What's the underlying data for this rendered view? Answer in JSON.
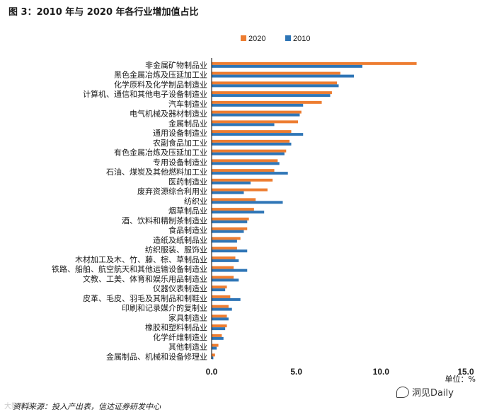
{
  "title": "图 3：2010 年与 2020 年各行业增加值占比",
  "source": "资料来源：投入产出表，信达证券研发中心",
  "watermark_left": "大数睡眠",
  "watermark_right": "洞见Daily",
  "colors": {
    "s2020": "#ED7D31",
    "s2010": "#2E75B6",
    "axis": "#000000",
    "text": "#1a1a1a"
  },
  "chart_data": {
    "type": "bar",
    "orientation": "horizontal",
    "title": "图 3：2010 年与 2020 年各行业增加值占比",
    "unit_label": "单位：%",
    "xlim": [
      0,
      15
    ],
    "xticks": [
      0,
      5,
      10,
      15
    ],
    "xtick_labels": [
      "0.0",
      "5.0",
      "10.0",
      "15.0"
    ],
    "legend": {
      "position": "top-right",
      "entries": [
        "2020",
        "2010"
      ]
    },
    "categories": [
      "非金属矿物制品业",
      "黑色金属冶炼及压延加工业",
      "化学原料及化学制品制造业",
      "计算机、通信和其他电子设备制造业",
      "汽车制造业",
      "电气机械及器材制造业",
      "金属制品业",
      "通用设备制造业",
      "农副食品加工业",
      "有色金属冶炼及压延加工业",
      "专用设备制造业",
      "石油、煤炭及其他燃料加工业",
      "医药制造业",
      "废弃资源综合利用业",
      "纺织业",
      "烟草制品业",
      "酒、饮料和精制茶制造业",
      "食品制造业",
      "造纸及纸制品业",
      "纺织服装、服饰业",
      "木材加工及木、竹、藤、棕、草制品业",
      "铁路、船舶、航空航天和其他运输设备制造业",
      "文教、工美、体育和娱乐用品制造业",
      "仪器仪表制造业",
      "皮革、毛皮、羽毛及其制品和制鞋业",
      "印刷和记录媒介的复制业",
      "家具制造业",
      "橡胶和塑料制品业",
      "化学纤维制造业",
      "其他制造业",
      "金属制品、机械和设备修理业"
    ],
    "series": [
      {
        "name": "2020",
        "values": [
          12.1,
          7.6,
          7.4,
          7.1,
          6.5,
          5.3,
          5.1,
          4.7,
          4.6,
          4.4,
          3.9,
          3.7,
          3.6,
          3.3,
          2.6,
          2.5,
          2.2,
          2.1,
          1.7,
          1.5,
          1.4,
          1.3,
          1.3,
          0.9,
          1.1,
          1.0,
          0.9,
          0.9,
          0.6,
          0.4,
          0.2
        ]
      },
      {
        "name": "2010",
        "values": [
          8.9,
          8.4,
          7.5,
          7.0,
          5.4,
          5.2,
          3.7,
          5.4,
          4.7,
          4.3,
          4.0,
          4.5,
          2.3,
          1.9,
          4.2,
          3.1,
          2.1,
          1.9,
          1.5,
          2.1,
          1.6,
          2.1,
          1.6,
          0.8,
          1.7,
          1.2,
          1.0,
          0.8,
          0.7,
          0.3,
          0.1
        ]
      }
    ]
  }
}
